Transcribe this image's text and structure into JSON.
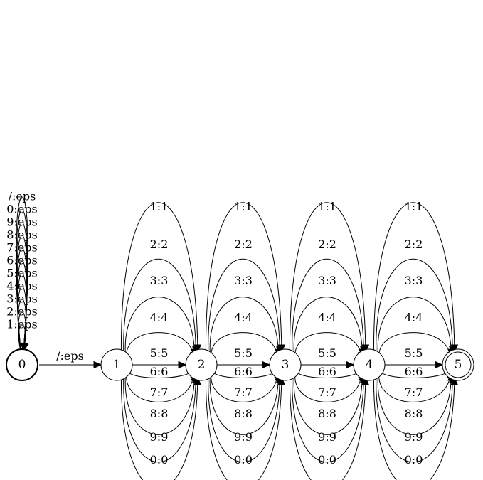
{
  "diagram": {
    "states": [
      {
        "id": "0",
        "label": "0",
        "initial": true,
        "final": false
      },
      {
        "id": "1",
        "label": "1",
        "initial": false,
        "final": false
      },
      {
        "id": "2",
        "label": "2",
        "initial": false,
        "final": false
      },
      {
        "id": "3",
        "label": "3",
        "initial": false,
        "final": false
      },
      {
        "id": "4",
        "label": "4",
        "initial": false,
        "final": false
      },
      {
        "id": "5",
        "label": "5",
        "initial": false,
        "final": true
      }
    ],
    "self_loops_state_0": [
      "1:eps",
      "2:eps",
      "3:eps",
      "4:eps",
      "5:eps",
      "6:eps",
      "7:eps",
      "8:eps",
      "9:eps",
      "0:eps",
      "/:eps"
    ],
    "edge_0_1": "/:eps",
    "transitions": [
      "1:1",
      "2:2",
      "3:3",
      "4:4",
      "5:5",
      "6:6",
      "7:7",
      "8:8",
      "9:9",
      "0:0"
    ],
    "transition_stages": [
      {
        "from": "1",
        "to": "2"
      },
      {
        "from": "2",
        "to": "3"
      },
      {
        "from": "3",
        "to": "4"
      },
      {
        "from": "4",
        "to": "5"
      }
    ]
  }
}
